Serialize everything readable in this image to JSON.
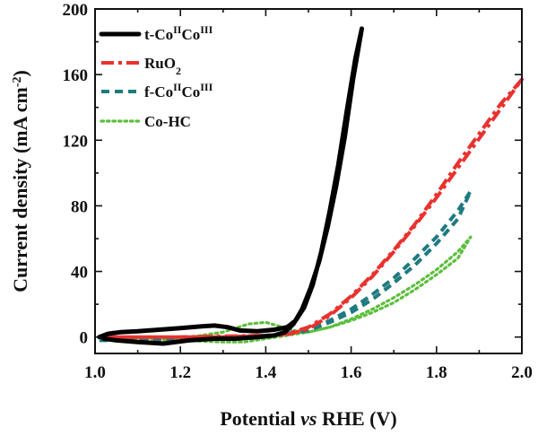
{
  "chart_data": {
    "type": "line",
    "xlabel": {
      "pre": "Potential ",
      "italic": "vs",
      "post": " RHE (V)"
    },
    "ylabel": {
      "pre": "Current density (mA cm",
      "sup": "-2",
      "post": ")"
    },
    "xlim": [
      1.0,
      2.0
    ],
    "ylim": [
      -10,
      200
    ],
    "xticks": [
      1.0,
      1.2,
      1.4,
      1.6,
      1.8,
      2.0
    ],
    "xtick_labels": [
      "1.0",
      "1.2",
      "1.4",
      "1.6",
      "1.8",
      "2.0"
    ],
    "yticks": [
      0,
      40,
      80,
      120,
      160,
      200
    ],
    "ytick_labels": [
      "0",
      "40",
      "80",
      "120",
      "160",
      "200"
    ],
    "legend_position": "top-left",
    "series": [
      {
        "key": "t",
        "legend": {
          "pre": "t-Co",
          "sup1": "II",
          "mid": "Co",
          "sup2": "III"
        },
        "color": "#000000",
        "style": "solid",
        "x": [
          1.01,
          1.03,
          1.06,
          1.1,
          1.15,
          1.2,
          1.25,
          1.28,
          1.31,
          1.34,
          1.38,
          1.42,
          1.45,
          1.47,
          1.49,
          1.51,
          1.53,
          1.55,
          1.57,
          1.59,
          1.61,
          1.625,
          1.605,
          1.585,
          1.565,
          1.545,
          1.525,
          1.505,
          1.485,
          1.465,
          1.445,
          1.42,
          1.38,
          1.33,
          1.28,
          1.22,
          1.16,
          1.1,
          1.05,
          1.02
        ],
        "y": [
          0,
          2,
          3,
          3.5,
          4.5,
          5.5,
          6.5,
          7,
          6,
          4,
          3.5,
          4.5,
          6,
          10,
          18,
          32,
          52,
          77,
          105,
          138,
          170,
          188,
          158,
          122,
          92,
          67,
          46,
          30,
          17,
          8,
          3,
          1,
          0,
          -1,
          -1,
          -2,
          -4,
          -3,
          -2,
          -1
        ]
      },
      {
        "key": "ruo2",
        "legend": {
          "pre": "RuO",
          "sub": "2"
        },
        "color": "#e8322f",
        "style": "dashdot",
        "x": [
          1.01,
          1.1,
          1.2,
          1.3,
          1.4,
          1.45,
          1.5,
          1.55,
          1.6,
          1.65,
          1.7,
          1.75,
          1.8,
          1.85,
          1.9,
          1.95,
          2.0,
          1.95,
          1.9,
          1.85,
          1.8,
          1.75,
          1.7,
          1.65,
          1.6,
          1.55,
          1.5,
          1.45,
          1.4,
          1.3,
          1.2,
          1.1,
          1.01
        ],
        "y": [
          0,
          0,
          0,
          0.5,
          1,
          2,
          6,
          14,
          25,
          38,
          53,
          69,
          87,
          106,
          124,
          142,
          157,
          139,
          121,
          103,
          85,
          68,
          52,
          37,
          24,
          13,
          5,
          1.5,
          0.5,
          0,
          0,
          0,
          0
        ]
      },
      {
        "key": "f",
        "legend": {
          "pre": "f-Co",
          "sup1": "II",
          "mid": "Co",
          "sup2": "III"
        },
        "color": "#1f7a80",
        "style": "dashed",
        "x": [
          1.01,
          1.1,
          1.2,
          1.3,
          1.4,
          1.45,
          1.5,
          1.55,
          1.6,
          1.65,
          1.7,
          1.75,
          1.8,
          1.85,
          1.88,
          1.85,
          1.8,
          1.75,
          1.7,
          1.65,
          1.6,
          1.55,
          1.5,
          1.45,
          1.4,
          1.3,
          1.2,
          1.1,
          1.01
        ],
        "y": [
          -2,
          -1,
          0,
          0,
          1,
          2,
          5,
          10,
          17,
          26,
          36,
          48,
          61,
          77,
          89,
          72,
          57,
          44,
          33,
          23,
          15,
          9,
          4,
          2,
          1,
          -1,
          -2,
          -2,
          -2
        ]
      },
      {
        "key": "cohc",
        "legend": {
          "text": "Co-HC"
        },
        "color": "#5cbf3d",
        "style": "dotted",
        "x": [
          1.01,
          1.1,
          1.2,
          1.3,
          1.36,
          1.4,
          1.44,
          1.48,
          1.5,
          1.55,
          1.6,
          1.65,
          1.7,
          1.75,
          1.8,
          1.85,
          1.88,
          1.85,
          1.8,
          1.75,
          1.7,
          1.65,
          1.6,
          1.55,
          1.5,
          1.45,
          1.4,
          1.35,
          1.3,
          1.2,
          1.1,
          1.01
        ],
        "y": [
          0,
          -1,
          -1,
          3,
          8,
          9,
          6,
          3,
          3,
          6,
          11,
          17,
          24,
          32,
          41,
          52,
          61,
          48,
          38,
          29,
          21,
          15,
          10,
          6,
          3,
          1,
          -1,
          -3,
          -3,
          -2,
          -1,
          0
        ]
      }
    ]
  }
}
